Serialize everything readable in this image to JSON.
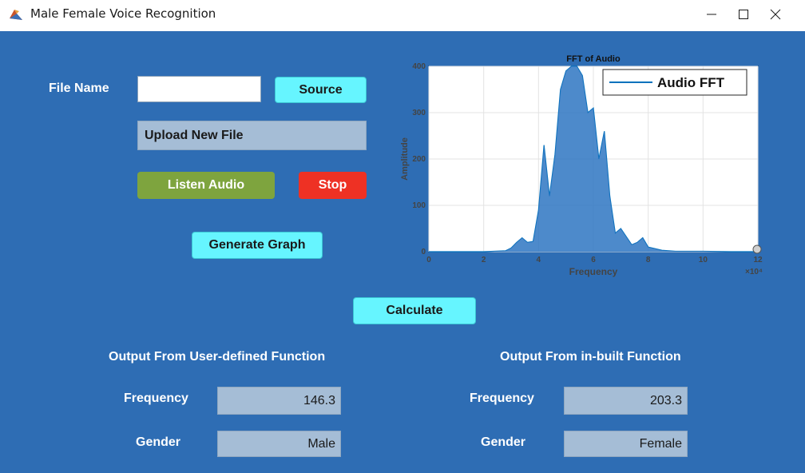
{
  "window": {
    "title": "Male Female Voice Recognition",
    "minimize_glyph": "—",
    "maximize_glyph": "☐",
    "close_glyph": "✕",
    "app_icon": "matlab-icon",
    "background_color": "#2e6db4"
  },
  "controls": {
    "file_name_label": "File Name",
    "file_name_value": "",
    "source_label": "Source",
    "upload_label": "Upload New File",
    "listen_label": "Listen Audio",
    "stop_label": "Stop",
    "generate_label": "Generate Graph",
    "calculate_label": "Calculate"
  },
  "output_user": {
    "heading": "Output From User-defined Function",
    "frequency_label": "Frequency",
    "frequency_value": "146.3",
    "gender_label": "Gender",
    "gender_value": "Male"
  },
  "output_builtin": {
    "heading": "Output From in-built Function",
    "frequency_label": "Frequency",
    "frequency_value": "203.3",
    "gender_label": "Gender",
    "gender_value": "Female"
  },
  "chart_data": {
    "type": "line",
    "title": "FFT of Audio",
    "xlabel": "Frequency",
    "ylabel": "Amplitude",
    "x_exponent": "×10⁴",
    "xlim": [
      0,
      12
    ],
    "ylim": [
      0,
      400
    ],
    "xticks": [
      0,
      2,
      4,
      6,
      8,
      10,
      12
    ],
    "yticks": [
      0,
      100,
      200,
      300,
      400
    ],
    "grid": true,
    "legend": "top-right",
    "series": [
      {
        "name": "Audio FFT",
        "color": "#0072bd",
        "x": [
          0,
          1,
          2,
          2.8,
          3.0,
          3.2,
          3.4,
          3.6,
          3.8,
          4.0,
          4.2,
          4.4,
          4.6,
          4.8,
          5.0,
          5.2,
          5.4,
          5.6,
          5.8,
          6.0,
          6.2,
          6.4,
          6.6,
          6.8,
          7.0,
          7.4,
          7.6,
          7.8,
          8.0,
          8.5,
          9,
          10,
          11,
          12
        ],
        "y": [
          0,
          0,
          0,
          2,
          8,
          20,
          30,
          20,
          22,
          90,
          230,
          120,
          210,
          350,
          390,
          400,
          400,
          380,
          300,
          310,
          200,
          260,
          120,
          40,
          50,
          15,
          20,
          30,
          10,
          3,
          1,
          1,
          0,
          0
        ]
      }
    ]
  }
}
